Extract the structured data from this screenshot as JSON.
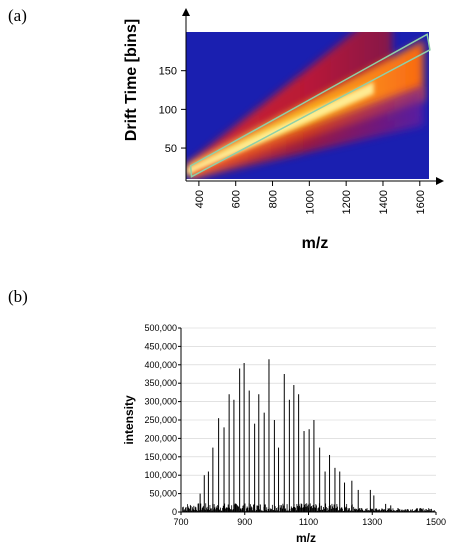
{
  "panels": {
    "a_label": "(a)",
    "b_label": "(b)"
  },
  "chart_data": [
    {
      "type": "heatmap",
      "panel": "(a)",
      "xlabel": "m/z",
      "ylabel": "Drift Time [bins]",
      "x_ticks": [
        400,
        600,
        800,
        1000,
        1200,
        1400,
        1600
      ],
      "y_ticks": [
        50,
        100,
        150
      ],
      "xlim": [
        330,
        1650
      ],
      "ylim": [
        10,
        200
      ],
      "colormap": [
        "#1a1fb0",
        "#6a1aa0",
        "#c01218",
        "#ff2a10",
        "#ff9a10",
        "#fff06a"
      ],
      "background_color": "#1a1fb0",
      "bands": [
        {
          "name": "",
          "x": [
            340,
            1450
          ],
          "y": [
            22,
            195
          ],
          "intensity": 0.55
        },
        {
          "name": "",
          "x": [
            340,
            1620
          ],
          "y": [
            20,
            150
          ],
          "intensity": 0.95
        },
        {
          "name": "",
          "x": [
            360,
            1620
          ],
          "y": [
            18,
            105
          ],
          "intensity": 0.45
        }
      ],
      "selection_box": {
        "color": "#8fd0a8",
        "corners": [
          [
            355,
            27
          ],
          [
            1640,
            197
          ],
          [
            1655,
            177
          ],
          [
            360,
            13
          ]
        ]
      }
    },
    {
      "type": "bar",
      "panel": "(b)",
      "xlabel": "m/z",
      "ylabel": "intensity",
      "x_ticks": [
        700,
        900,
        1100,
        1300,
        1500
      ],
      "y_ticks": [
        "0",
        "50,000",
        "100,000",
        "150,000",
        "200,000",
        "250,000",
        "300,000",
        "350,000",
        "400,000",
        "450,000",
        "500,000"
      ],
      "y_tick_values": [
        0,
        50000,
        100000,
        150000,
        200000,
        250000,
        300000,
        350000,
        400000,
        450000,
        500000
      ],
      "xlim": [
        700,
        1500
      ],
      "ylim": [
        0,
        500000
      ],
      "major_peaks": {
        "x": [
          760,
          773,
          786,
          800,
          818,
          835,
          851,
          866,
          884,
          898,
          914,
          931,
          944,
          961,
          976,
          993,
          1006,
          1024,
          1040,
          1054,
          1069,
          1086,
          1102,
          1117,
          1135,
          1152,
          1166,
          1183,
          1198,
          1213,
          1236,
          1256,
          1294,
          1305,
          1342,
          1358
        ],
        "values": [
          50000,
          100000,
          110000,
          175000,
          255000,
          230000,
          320000,
          305000,
          390000,
          405000,
          330000,
          240000,
          320000,
          270000,
          415000,
          250000,
          175000,
          375000,
          305000,
          345000,
          320000,
          220000,
          225000,
          250000,
          175000,
          110000,
          155000,
          120000,
          110000,
          80000,
          85000,
          60000,
          60000,
          45000,
          22000,
          18000
        ]
      }
    }
  ]
}
